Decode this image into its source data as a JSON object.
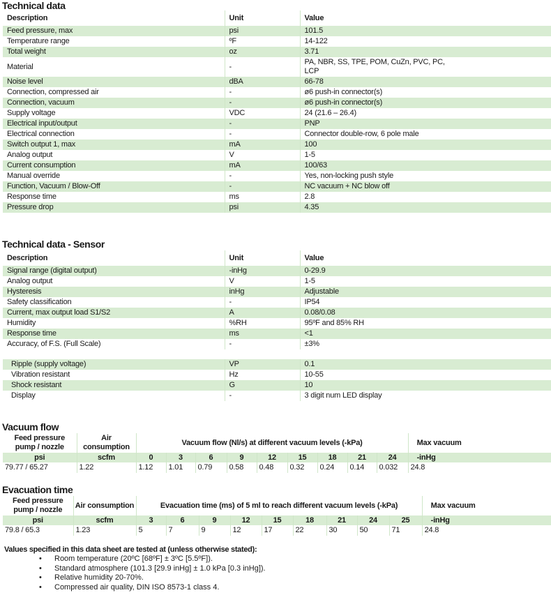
{
  "tech": {
    "title": "Technical data",
    "headers": [
      "Description",
      "Unit",
      "Value"
    ],
    "rows": [
      [
        "Feed pressure, max",
        "psi",
        "101.5"
      ],
      [
        "Temperature range",
        "ºF",
        "14-122"
      ],
      [
        "Total weight",
        "oz",
        "3.71"
      ],
      [
        "Material",
        "-",
        "PA, NBR, SS, TPE, POM, CuZn, PVC, PC, LCP"
      ],
      [
        "Noise level",
        "dBA",
        "66-78"
      ],
      [
        "Connection, compressed air",
        "-",
        "ø6 push-in connector(s)"
      ],
      [
        "Connection, vacuum",
        "-",
        "ø6 push-in connector(s)"
      ],
      [
        "Supply voltage",
        "VDC",
        "24 (21.6 – 26.4)"
      ],
      [
        "Electrical input/output",
        "-",
        "PNP"
      ],
      [
        "Electrical connection",
        "-",
        "Connector double-row, 6 pole male"
      ],
      [
        "Switch output 1, max",
        "mA",
        "100"
      ],
      [
        "Analog output",
        "V",
        "1-5"
      ],
      [
        "Current consumption",
        "mA",
        "100/63"
      ],
      [
        "Manual override",
        "-",
        "Yes, non-locking push style"
      ],
      [
        "Function, Vacuum / Blow-Off",
        "-",
        "NC vacuum + NC blow off"
      ],
      [
        "Response time",
        "ms",
        "2.8"
      ],
      [
        "Pressure drop",
        "psi",
        "4.35"
      ]
    ]
  },
  "sensor": {
    "title": "Technical data - Sensor",
    "headers": [
      "Description",
      "Unit",
      "Value"
    ],
    "rows": [
      [
        "Signal range (digital output)",
        "-inHg",
        "0-29.9"
      ],
      [
        "Analog output",
        "V",
        "1-5"
      ],
      [
        "Hysteresis",
        "inHg",
        "Adjustable"
      ],
      [
        "Safety classification",
        "-",
        "IP54"
      ],
      [
        "Current, max output load S1/S2",
        "A",
        "0.08/0.08"
      ],
      [
        "Humidity",
        "%RH",
        "95ºF and 85% RH"
      ],
      [
        "Response time",
        "ms",
        "<1"
      ],
      [
        "Accuracy, of F.S. (Full Scale)",
        "-",
        "±3%"
      ]
    ],
    "rows2": [
      [
        "Ripple (supply voltage)",
        "VP",
        "0.1"
      ],
      [
        "Vibration resistant",
        "Hz",
        "10-55"
      ],
      [
        "Shock resistant",
        "G",
        "10"
      ],
      [
        "Display",
        "-",
        "3 digit num LED display"
      ]
    ]
  },
  "vacuum_flow": {
    "title": "Vacuum flow",
    "col1": "Feed pressure pump / nozzle",
    "col2": "Air consumption",
    "span": "Vacuum flow (Nl/s) at different vacuum levels (-kPa)",
    "col_last": "Max vacuum",
    "units": [
      "psi",
      "scfm"
    ],
    "levels": [
      "0",
      "3",
      "6",
      "9",
      "12",
      "15",
      "18",
      "21",
      "24"
    ],
    "unit_last": "-inHg",
    "values": [
      "79.77 / 65.27",
      "1.22",
      "1.12",
      "1.01",
      "0.79",
      "0.58",
      "0.48",
      "0.32",
      "0.24",
      "0.14",
      "0.032",
      "24.8"
    ]
  },
  "evacuation": {
    "title": "Evacuation time",
    "col1": "Feed pressure pump / nozzle",
    "col2": "Air consumption",
    "span": "Evacuation time (ms) of 5 ml to reach different vacuum levels (-kPa)",
    "col_last": "Max vacuum",
    "units": [
      "psi",
      "scfm"
    ],
    "levels": [
      "3",
      "6",
      "9",
      "12",
      "15",
      "18",
      "21",
      "24",
      "25"
    ],
    "unit_last": "-inHg",
    "values": [
      "79.8 / 65.3",
      "1.23",
      "5",
      "7",
      "9",
      "12",
      "17",
      "22",
      "30",
      "50",
      "71",
      "24.8"
    ]
  },
  "footer": {
    "heading": "Values specified in this data sheet are tested at (unless otherwise stated):",
    "bullets": [
      "Room temperature (20ºC [68ºF] ± 3ºC [5.5ºF]).",
      "Standard atmosphere (101.3 [29.9 inHg] ± 1.0 kPa [0.3 inHg]).",
      "Relative humidity 20-70%.",
      "Compressed air quality, DIN ISO 8573-1 class 4."
    ]
  },
  "colors": {
    "row_fill": "#d8ecd2"
  }
}
